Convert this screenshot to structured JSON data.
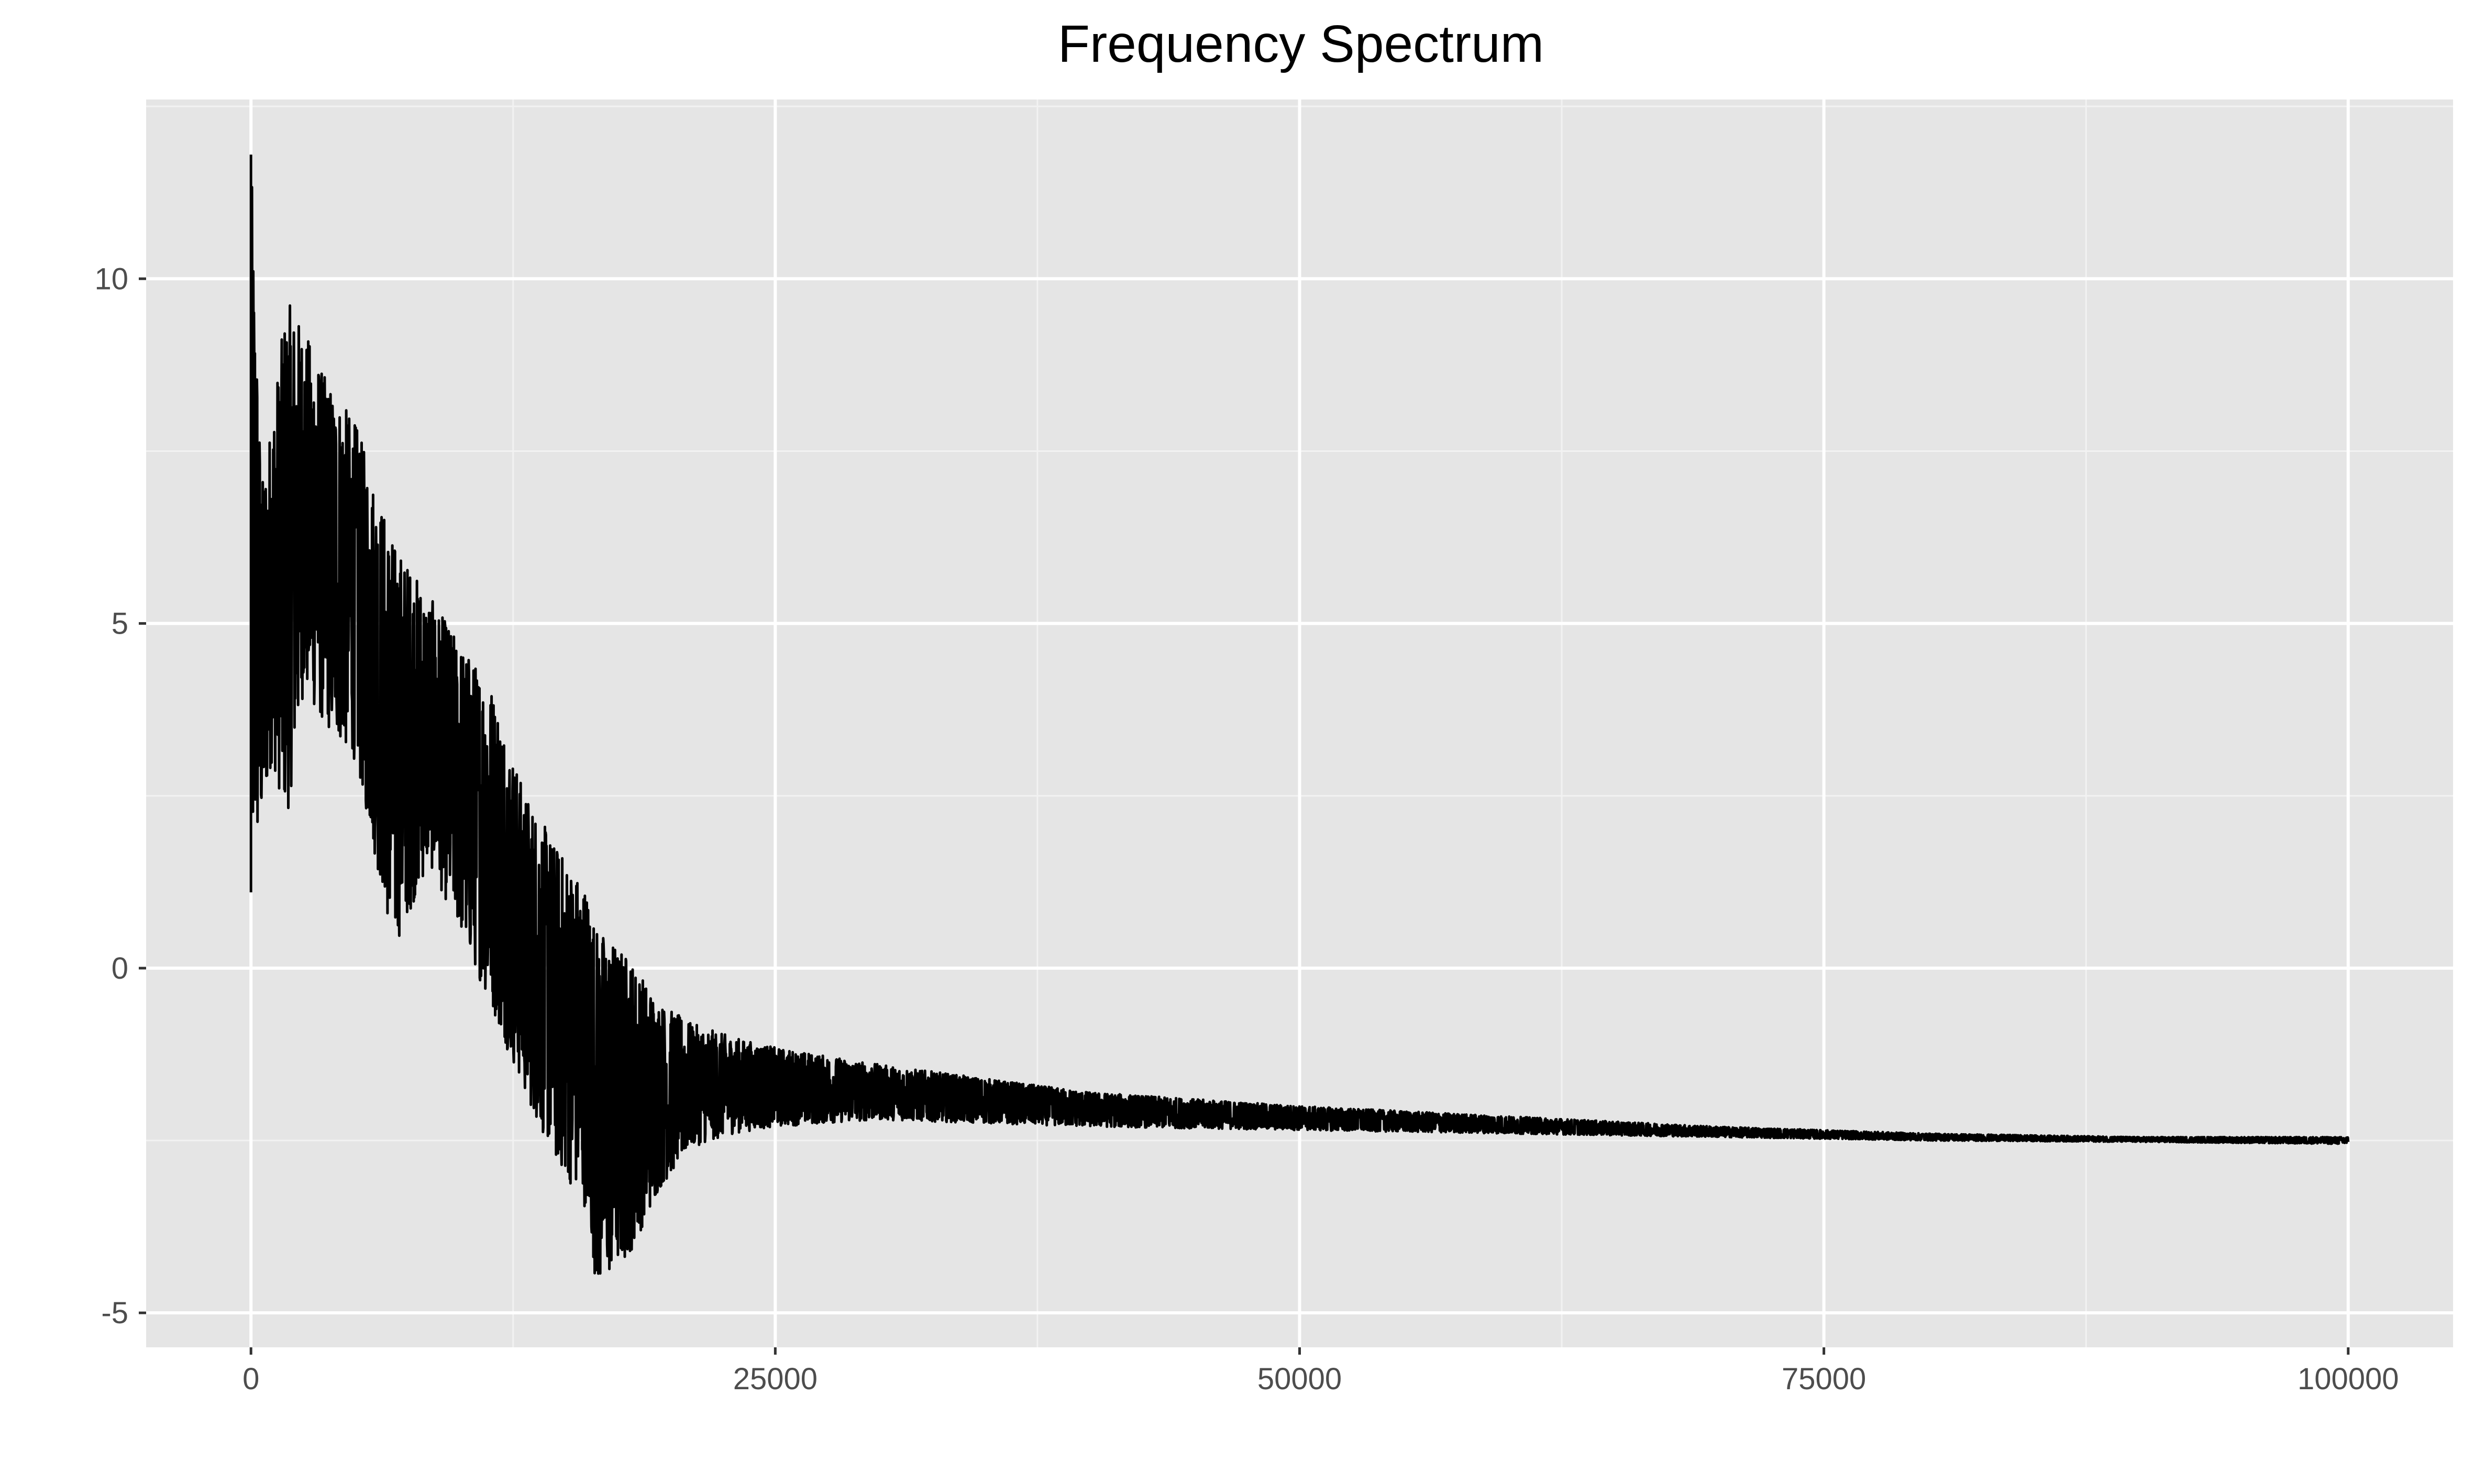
{
  "chart_data": {
    "type": "line",
    "title": "Frequency Spectrum",
    "xlabel": "",
    "ylabel": "",
    "xlim": [
      -5000,
      105000
    ],
    "ylim": [
      -5.5,
      12.6
    ],
    "x_ticks": [
      0,
      25000,
      50000,
      75000,
      100000
    ],
    "x_tick_labels": [
      "0",
      "25000",
      "50000",
      "75000",
      "100000"
    ],
    "y_ticks": [
      -5,
      0,
      5,
      10
    ],
    "y_tick_labels": [
      "-5",
      "0",
      "5",
      "10"
    ],
    "grid": true,
    "legend": "none",
    "series": [
      {
        "color": "#000000",
        "x_start": 0,
        "x_end": 100000,
        "envelope": [
          {
            "x": 0,
            "min": 1.1,
            "max": 11.8
          },
          {
            "x": 500,
            "min": 2.0,
            "max": 7.0
          },
          {
            "x": 1000,
            "min": 3.0,
            "max": 8.0
          },
          {
            "x": 1700,
            "min": 2.1,
            "max": 9.7
          },
          {
            "x": 2500,
            "min": 4.0,
            "max": 9.3
          },
          {
            "x": 3500,
            "min": 3.5,
            "max": 8.6
          },
          {
            "x": 5000,
            "min": 3.0,
            "max": 7.9
          },
          {
            "x": 6800,
            "min": 0.25,
            "max": 6.2
          },
          {
            "x": 8500,
            "min": 1.5,
            "max": 5.4
          },
          {
            "x": 10000,
            "min": 0.5,
            "max": 4.7
          },
          {
            "x": 11500,
            "min": -0.6,
            "max": 4.1
          },
          {
            "x": 13000,
            "min": -1.8,
            "max": 2.6
          },
          {
            "x": 14500,
            "min": -2.8,
            "max": 1.8
          },
          {
            "x": 16000,
            "min": -3.5,
            "max": 1.2
          },
          {
            "x": 16500,
            "min": -4.7,
            "max": 0.6
          },
          {
            "x": 18000,
            "min": -4.2,
            "max": 0.2
          },
          {
            "x": 19500,
            "min": -3.2,
            "max": -0.5
          },
          {
            "x": 21000,
            "min": -2.6,
            "max": -0.8
          },
          {
            "x": 23000,
            "min": -2.4,
            "max": -1.0
          },
          {
            "x": 25000,
            "min": -2.3,
            "max": -1.15
          },
          {
            "x": 30000,
            "min": -2.2,
            "max": -1.4
          },
          {
            "x": 35000,
            "min": -2.25,
            "max": -1.6
          },
          {
            "x": 40000,
            "min": -2.3,
            "max": -1.8
          },
          {
            "x": 50000,
            "min": -2.35,
            "max": -2.0
          },
          {
            "x": 60000,
            "min": -2.4,
            "max": -2.15
          },
          {
            "x": 70000,
            "min": -2.45,
            "max": -2.3
          },
          {
            "x": 80000,
            "min": -2.5,
            "max": -2.4
          },
          {
            "x": 90000,
            "min": -2.52,
            "max": -2.45
          },
          {
            "x": 100000,
            "min": -2.55,
            "max": -2.45
          }
        ]
      }
    ]
  }
}
